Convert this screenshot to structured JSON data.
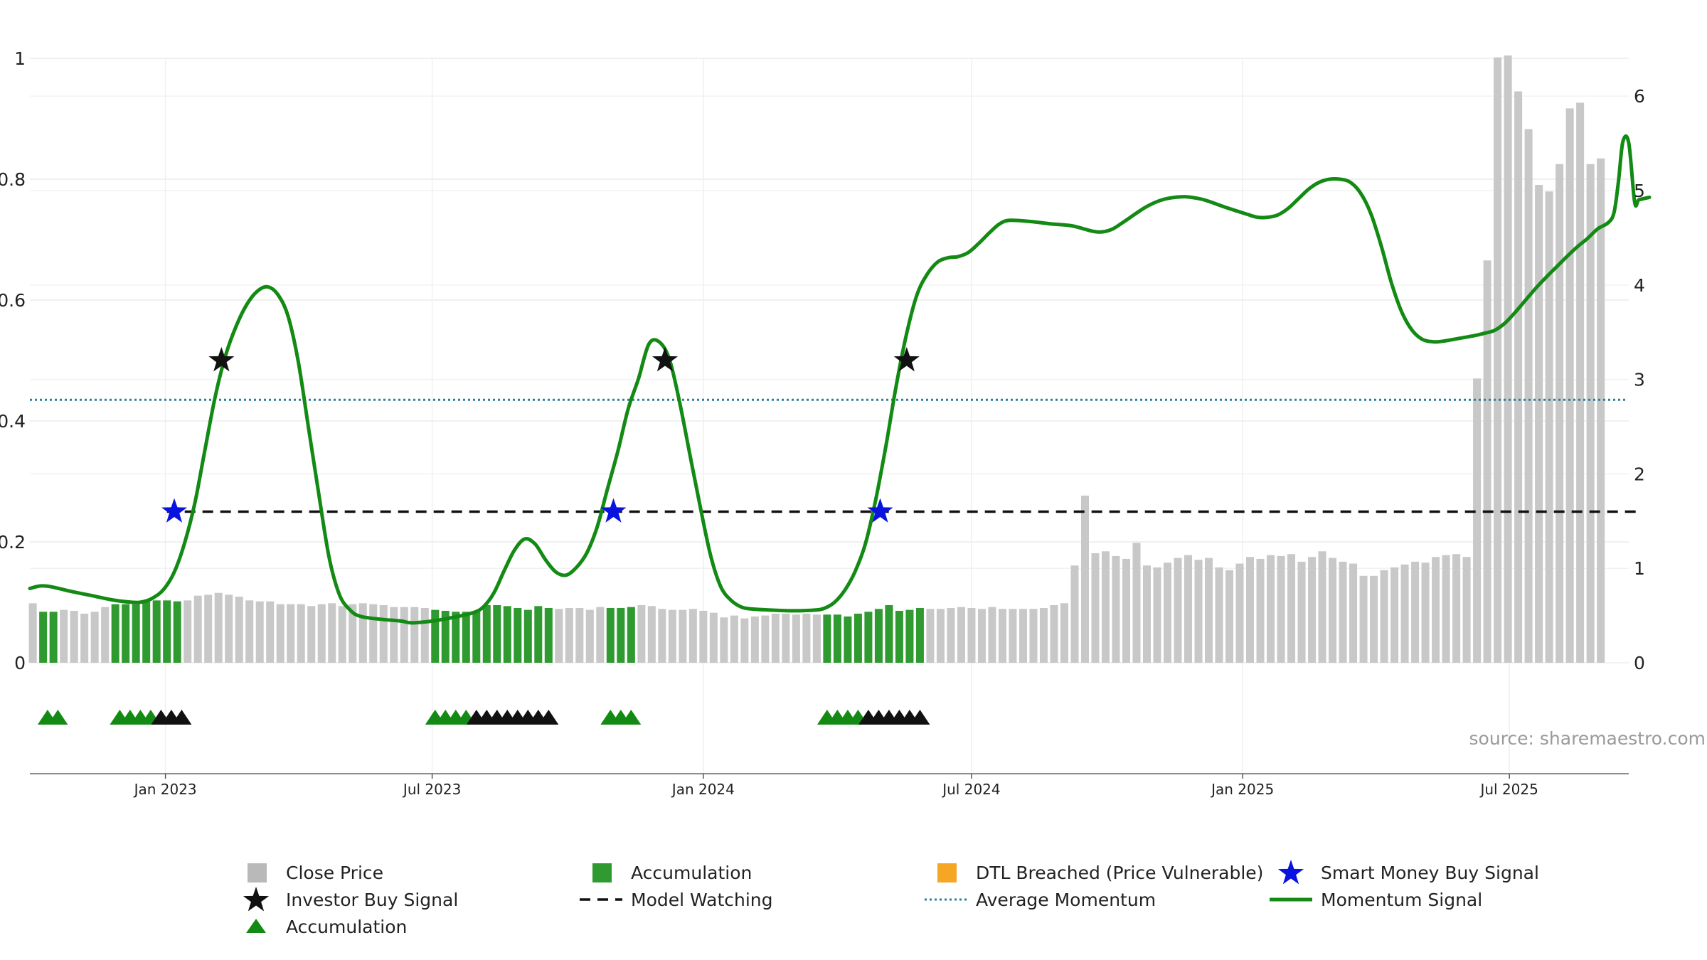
{
  "source_text": "source: sharemaestro.com",
  "colors": {
    "close_price": "#c8c8c8",
    "accumulation_bar": "#2f9a2f",
    "dtl_breached": "#f5a623",
    "momentum": "#138a13",
    "average_momentum": "#2e7d9a",
    "model_watching": "#111111",
    "smart_money": "#0a12e0",
    "investor": "#111111",
    "accum_triangle": "#138a13"
  },
  "legend": [
    {
      "key": "close_price",
      "label": "Close Price",
      "icon": "gray-square"
    },
    {
      "key": "accumulation",
      "label": "Accumulation",
      "icon": "green-square"
    },
    {
      "key": "dtl",
      "label": "DTL Breached (Price Vulnerable)",
      "icon": "orange-square"
    },
    {
      "key": "smart_money",
      "label": "Smart Money Buy Signal",
      "icon": "blue-star"
    },
    {
      "key": "investor",
      "label": "Investor Buy Signal",
      "icon": "black-star"
    },
    {
      "key": "model_watching",
      "label": "Model Watching",
      "icon": "black-dashed-line"
    },
    {
      "key": "average_momentum",
      "label": "Average Momentum",
      "icon": "blue-dotted-line"
    },
    {
      "key": "momentum",
      "label": "Momentum Signal",
      "icon": "green-line"
    },
    {
      "key": "accum_triangle",
      "label": "Accumulation",
      "icon": "green-triangle"
    }
  ],
  "chart_data": {
    "type": "bar+line",
    "x_domain": [
      "2022-10-01",
      "2025-09-20"
    ],
    "x_ticks": [
      {
        "date": "2023-01-01",
        "label": "Jan 2023"
      },
      {
        "date": "2023-07-01",
        "label": "Jul 2023"
      },
      {
        "date": "2024-01-01",
        "label": "Jan 2024"
      },
      {
        "date": "2024-07-01",
        "label": "Jul 2024"
      },
      {
        "date": "2025-01-01",
        "label": "Jan 2025"
      },
      {
        "date": "2025-07-01",
        "label": "Jul 2025"
      }
    ],
    "left_axis": {
      "ylim": [
        0,
        1
      ],
      "ticks": [
        0,
        0.2,
        0.4,
        0.6,
        0.8,
        1
      ],
      "labels": [
        "0",
        "0.2",
        "0.4",
        "0.6",
        "0.8",
        "1"
      ]
    },
    "right_axis": {
      "ylim": [
        0,
        6.4
      ],
      "ticks": [
        0,
        1,
        2,
        3,
        4,
        5,
        6
      ],
      "labels": [
        "0",
        "1",
        "2",
        "3",
        "4",
        "5",
        "6"
      ]
    },
    "grid": true,
    "legend_position": "bottom",
    "close_price": {
      "start_date": "2022-10-03",
      "interval_days": 7,
      "values": [
        0.63,
        0.54,
        0.54,
        0.56,
        0.55,
        0.52,
        0.54,
        0.59,
        0.62,
        0.62,
        0.62,
        0.65,
        0.66,
        0.66,
        0.65,
        0.66,
        0.71,
        0.72,
        0.74,
        0.72,
        0.7,
        0.66,
        0.65,
        0.65,
        0.62,
        0.62,
        0.62,
        0.6,
        0.62,
        0.63,
        0.6,
        0.62,
        0.63,
        0.62,
        0.61,
        0.59,
        0.59,
        0.59,
        0.58,
        0.56,
        0.55,
        0.54,
        0.54,
        0.54,
        0.61,
        0.61,
        0.6,
        0.58,
        0.56,
        0.6,
        0.58,
        0.57,
        0.58,
        0.58,
        0.56,
        0.59,
        0.58,
        0.58,
        0.59,
        0.61,
        0.6,
        0.57,
        0.56,
        0.56,
        0.57,
        0.55,
        0.53,
        0.48,
        0.5,
        0.47,
        0.49,
        0.5,
        0.52,
        0.52,
        0.51,
        0.52,
        0.51,
        0.51,
        0.51,
        0.49,
        0.52,
        0.54,
        0.57,
        0.61,
        0.55,
        0.56,
        0.58,
        0.57,
        0.57,
        0.58,
        0.59,
        0.58,
        0.57,
        0.59,
        0.57,
        0.57,
        0.57,
        0.57,
        0.58,
        0.61,
        0.63,
        1.03,
        1.77,
        1.16,
        1.18,
        1.13,
        1.1,
        1.27,
        1.03,
        1.01,
        1.06,
        1.11,
        1.14,
        1.09,
        1.11,
        1.01,
        0.98,
        1.05,
        1.12,
        1.1,
        1.14,
        1.13,
        1.15,
        1.07,
        1.12,
        1.18,
        1.11,
        1.07,
        1.05,
        0.92,
        0.92,
        0.98,
        1.01,
        1.04,
        1.07,
        1.06,
        1.12,
        1.14,
        1.15,
        1.12,
        3.01,
        4.26,
        6.41,
        6.43,
        6.05,
        5.65,
        5.06,
        4.99,
        5.28,
        5.87,
        5.93,
        5.28,
        5.34
      ]
    },
    "accumulation_ranges": [
      {
        "from": "2022-10-10",
        "to": "2022-10-17"
      },
      {
        "from": "2022-11-28",
        "to": "2023-01-09"
      },
      {
        "from": "2023-07-03",
        "to": "2023-09-18"
      },
      {
        "from": "2023-10-30",
        "to": "2023-11-13"
      },
      {
        "from": "2024-03-25",
        "to": "2024-05-27"
      }
    ],
    "momentum_signal": {
      "points": [
        [
          "2022-10-01",
          0.123
        ],
        [
          "2022-10-08",
          0.127
        ],
        [
          "2022-10-15",
          0.126
        ],
        [
          "2022-10-29",
          0.118
        ],
        [
          "2022-11-12",
          0.111
        ],
        [
          "2022-11-26",
          0.104
        ],
        [
          "2022-12-10",
          0.1
        ],
        [
          "2022-12-17",
          0.101
        ],
        [
          "2022-12-24",
          0.108
        ],
        [
          "2022-12-31",
          0.122
        ],
        [
          "2023-01-07",
          0.15
        ],
        [
          "2023-01-14",
          0.198
        ],
        [
          "2023-01-21",
          0.265
        ],
        [
          "2023-01-28",
          0.355
        ],
        [
          "2023-02-04",
          0.443
        ],
        [
          "2023-02-11",
          0.51
        ],
        [
          "2023-02-18",
          0.557
        ],
        [
          "2023-02-25",
          0.592
        ],
        [
          "2023-03-04",
          0.614
        ],
        [
          "2023-03-11",
          0.622
        ],
        [
          "2023-03-18",
          0.61
        ],
        [
          "2023-03-25",
          0.575
        ],
        [
          "2023-04-01",
          0.5
        ],
        [
          "2023-04-08",
          0.39
        ],
        [
          "2023-04-15",
          0.28
        ],
        [
          "2023-04-22",
          0.175
        ],
        [
          "2023-04-29",
          0.113
        ],
        [
          "2023-05-06",
          0.088
        ],
        [
          "2023-05-13",
          0.077
        ],
        [
          "2023-05-27",
          0.072
        ],
        [
          "2023-06-10",
          0.069
        ],
        [
          "2023-06-17",
          0.066
        ],
        [
          "2023-07-01",
          0.069
        ],
        [
          "2023-07-15",
          0.075
        ],
        [
          "2023-07-29",
          0.083
        ],
        [
          "2023-08-05",
          0.093
        ],
        [
          "2023-08-12",
          0.116
        ],
        [
          "2023-08-19",
          0.153
        ],
        [
          "2023-08-26",
          0.187
        ],
        [
          "2023-09-02",
          0.205
        ],
        [
          "2023-09-09",
          0.196
        ],
        [
          "2023-09-16",
          0.17
        ],
        [
          "2023-09-23",
          0.15
        ],
        [
          "2023-09-30",
          0.145
        ],
        [
          "2023-10-07",
          0.158
        ],
        [
          "2023-10-14",
          0.182
        ],
        [
          "2023-10-21",
          0.225
        ],
        [
          "2023-10-28",
          0.288
        ],
        [
          "2023-11-04",
          0.35
        ],
        [
          "2023-11-11",
          0.42
        ],
        [
          "2023-11-18",
          0.47
        ],
        [
          "2023-11-25",
          0.527
        ],
        [
          "2023-12-02",
          0.531
        ],
        [
          "2023-12-09",
          0.502
        ],
        [
          "2023-12-16",
          0.43
        ],
        [
          "2023-12-23",
          0.343
        ],
        [
          "2023-12-30",
          0.257
        ],
        [
          "2024-01-06",
          0.177
        ],
        [
          "2024-01-13",
          0.125
        ],
        [
          "2024-01-20",
          0.103
        ],
        [
          "2024-01-27",
          0.092
        ],
        [
          "2024-02-03",
          0.089
        ],
        [
          "2024-02-17",
          0.087
        ],
        [
          "2024-03-02",
          0.086
        ],
        [
          "2024-03-16",
          0.087
        ],
        [
          "2024-03-23",
          0.09
        ],
        [
          "2024-03-30",
          0.1
        ],
        [
          "2024-04-06",
          0.12
        ],
        [
          "2024-04-13",
          0.151
        ],
        [
          "2024-04-20",
          0.197
        ],
        [
          "2024-04-27",
          0.27
        ],
        [
          "2024-05-04",
          0.36
        ],
        [
          "2024-05-11",
          0.46
        ],
        [
          "2024-05-18",
          0.545
        ],
        [
          "2024-05-25",
          0.609
        ],
        [
          "2024-06-01",
          0.643
        ],
        [
          "2024-06-08",
          0.663
        ],
        [
          "2024-06-15",
          0.67
        ],
        [
          "2024-06-22",
          0.672
        ],
        [
          "2024-06-29",
          0.679
        ],
        [
          "2024-07-06",
          0.694
        ],
        [
          "2024-07-13",
          0.711
        ],
        [
          "2024-07-20",
          0.726
        ],
        [
          "2024-07-27",
          0.732
        ],
        [
          "2024-08-10",
          0.73
        ],
        [
          "2024-08-24",
          0.726
        ],
        [
          "2024-09-07",
          0.723
        ],
        [
          "2024-09-21",
          0.714
        ],
        [
          "2024-09-28",
          0.713
        ],
        [
          "2024-10-05",
          0.718
        ],
        [
          "2024-10-12",
          0.729
        ],
        [
          "2024-10-26",
          0.752
        ],
        [
          "2024-11-02",
          0.761
        ],
        [
          "2024-11-09",
          0.767
        ],
        [
          "2024-11-16",
          0.77
        ],
        [
          "2024-11-23",
          0.771
        ],
        [
          "2024-11-30",
          0.769
        ],
        [
          "2024-12-07",
          0.765
        ],
        [
          "2024-12-21",
          0.753
        ],
        [
          "2025-01-04",
          0.742
        ],
        [
          "2025-01-11",
          0.737
        ],
        [
          "2025-01-18",
          0.737
        ],
        [
          "2025-01-25",
          0.741
        ],
        [
          "2025-02-01",
          0.752
        ],
        [
          "2025-02-08",
          0.768
        ],
        [
          "2025-02-15",
          0.784
        ],
        [
          "2025-02-22",
          0.795
        ],
        [
          "2025-03-01",
          0.8
        ],
        [
          "2025-03-08",
          0.8
        ],
        [
          "2025-03-15",
          0.795
        ],
        [
          "2025-03-22",
          0.777
        ],
        [
          "2025-03-29",
          0.743
        ],
        [
          "2025-04-05",
          0.69
        ],
        [
          "2025-04-12",
          0.628
        ],
        [
          "2025-04-19",
          0.58
        ],
        [
          "2025-04-26",
          0.55
        ],
        [
          "2025-05-03",
          0.535
        ],
        [
          "2025-05-10",
          0.531
        ],
        [
          "2025-05-17",
          0.532
        ],
        [
          "2025-05-31",
          0.538
        ],
        [
          "2025-06-07",
          0.541
        ],
        [
          "2025-06-14",
          0.545
        ],
        [
          "2025-06-21",
          0.55
        ],
        [
          "2025-06-28",
          0.562
        ],
        [
          "2025-07-05",
          0.58
        ],
        [
          "2025-07-12",
          0.6
        ],
        [
          "2025-07-19",
          0.62
        ],
        [
          "2025-07-26",
          0.638
        ],
        [
          "2025-08-02",
          0.655
        ],
        [
          "2025-08-09",
          0.672
        ],
        [
          "2025-08-16",
          0.688
        ],
        [
          "2025-08-23",
          0.702
        ],
        [
          "2025-08-30",
          0.718
        ],
        [
          "2025-09-06",
          0.728
        ],
        [
          "2025-09-10",
          0.745
        ],
        [
          "2025-09-13",
          0.796
        ],
        [
          "2025-09-16",
          0.862
        ],
        [
          "2025-09-20",
          0.86
        ],
        [
          "2025-09-24",
          0.762
        ],
        [
          "2025-09-27",
          0.766
        ],
        [
          "2025-10-04",
          0.77
        ]
      ]
    },
    "average_momentum": 0.435,
    "model_watching": {
      "value": 0.25,
      "from": "2023-01-02",
      "to": "2025-09-27"
    },
    "smart_money_buy_signals": [
      {
        "date": "2023-01-07",
        "value": 0.25
      },
      {
        "date": "2023-11-01",
        "value": 0.25
      },
      {
        "date": "2024-04-30",
        "value": 0.25
      }
    ],
    "investor_buy_signals": [
      {
        "date": "2023-02-08",
        "value": 0.5
      },
      {
        "date": "2023-12-06",
        "value": 0.5
      },
      {
        "date": "2024-05-18",
        "value": 0.5
      }
    ],
    "accumulation_markers": {
      "green": [
        "2022-10-13",
        "2022-10-20",
        "2022-12-01",
        "2022-12-08",
        "2022-12-15",
        "2022-12-22",
        "2023-07-03",
        "2023-07-10",
        "2023-07-17",
        "2023-07-24",
        "2023-10-30",
        "2023-11-06",
        "2023-11-13",
        "2024-03-25",
        "2024-04-01",
        "2024-04-08",
        "2024-04-15"
      ],
      "black": [
        "2022-12-29",
        "2023-01-05",
        "2023-01-12",
        "2023-07-31",
        "2023-08-07",
        "2023-08-14",
        "2023-08-21",
        "2023-08-28",
        "2023-09-04",
        "2023-09-11",
        "2023-09-18",
        "2024-04-22",
        "2024-04-29",
        "2024-05-06",
        "2024-05-13",
        "2024-05-20",
        "2024-05-27"
      ]
    }
  }
}
